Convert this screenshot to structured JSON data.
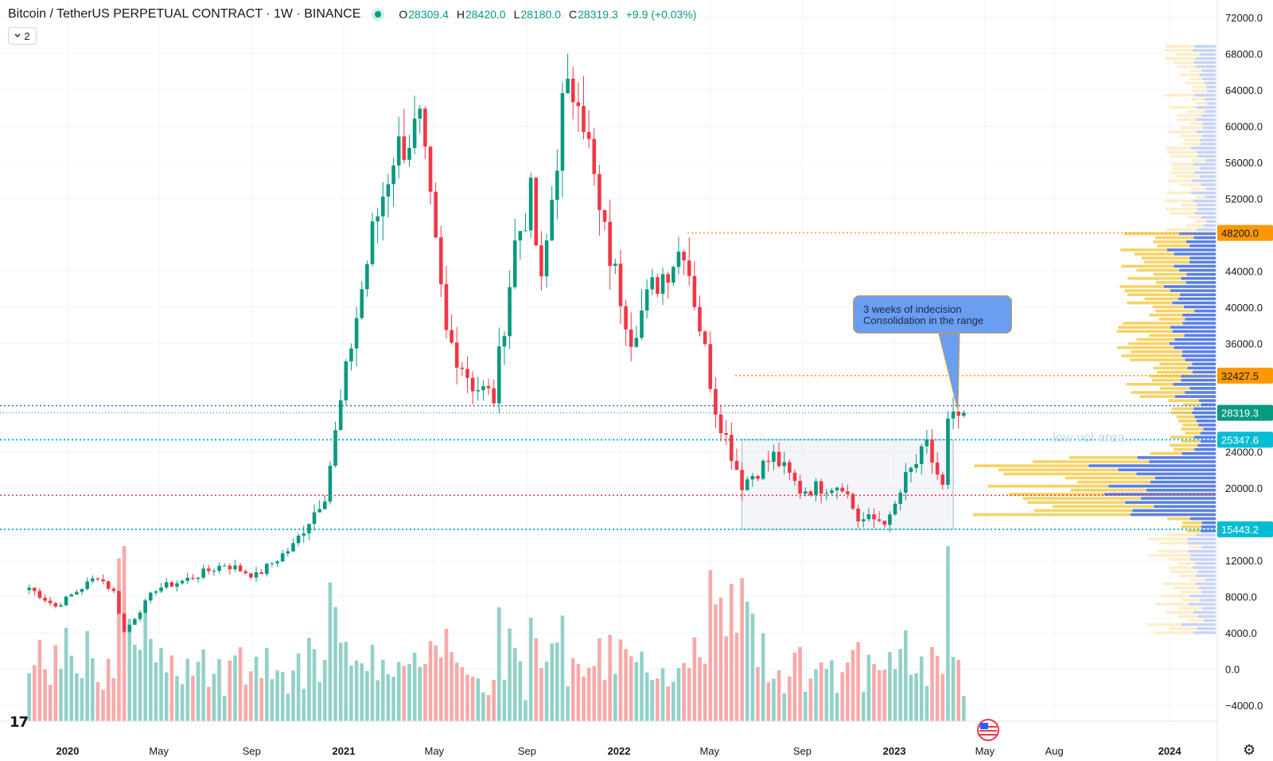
{
  "header": {
    "symbol": "Bitcoin / TetherUS PERPETUAL CONTRACT · 1W · BINANCE",
    "open_label": "O",
    "open": "28309.4",
    "high_label": "H",
    "high": "28420.0",
    "low_label": "L",
    "low": "28180.0",
    "close_label": "C",
    "close": "28319.3",
    "change": "+9.9 (+0.03%)"
  },
  "indicator_badge": "2",
  "annotations": {
    "callout_line1": "3 weeks of indecision",
    "callout_line2": "Consolidation in the range",
    "low_vol": "low vol area"
  },
  "logo": "17",
  "colors": {
    "up": "#089981",
    "down": "#f23645",
    "up_vol": "#92d1c8",
    "down_vol": "#f7a9a9",
    "orange": "#ff9800",
    "blue": "#2962ff",
    "red": "#f23645",
    "teal": "#00bcd4"
  },
  "chart_data": {
    "type": "candlestick",
    "timeframe": "1W",
    "y_ticks": [
      "72000.0",
      "68000.0",
      "64000.0",
      "60000.0",
      "56000.0",
      "52000.0",
      "44000.0",
      "40000.0",
      "36000.0",
      "24000.0",
      "20000.0",
      "12000.0",
      "8000.0",
      "4000.0",
      "0.0",
      "−4000.0"
    ],
    "x_ticks": [
      "2020",
      "May",
      "Sep",
      "2021",
      "May",
      "Sep",
      "2022",
      "May",
      "Sep",
      "2023",
      "May",
      "Aug",
      "2024"
    ],
    "ylim": [
      -6000,
      73500
    ],
    "price_tags": [
      {
        "label": "48200.0",
        "value": 48200,
        "color": "#ff9800"
      },
      {
        "label": "32427.5",
        "value": 32427.5,
        "color": "#ff9800"
      },
      {
        "label": "28319.3",
        "value": 28319.3,
        "color": "#089981"
      },
      {
        "label": "25347.6",
        "value": 25347.6,
        "color": "#00bcd4"
      },
      {
        "label": "15443.2",
        "value": 15443.2,
        "color": "#00bcd4"
      }
    ],
    "levels": [
      {
        "value": 48200,
        "color": "#ff9800"
      },
      {
        "value": 32427.5,
        "color": "#ff9800"
      },
      {
        "value": 29100,
        "color": "#2962ff"
      },
      {
        "value": 25347.6,
        "color": "#00bcd4"
      },
      {
        "value": 19200,
        "color": "#f23645"
      },
      {
        "value": 15443.2,
        "color": "#00bcd4"
      }
    ],
    "range_box": {
      "from": "2022-06-13",
      "to": "2023-03-20",
      "low": 15443.2,
      "high": 25347.6
    },
    "anchors": [
      [
        "2019-11-11",
        9000
      ],
      [
        "2019-12-16",
        6900
      ],
      [
        "2020-02-10",
        10300
      ],
      [
        "2020-03-02",
        8500
      ],
      [
        "2020-03-16",
        4100
      ],
      [
        "2020-04-27",
        8900
      ],
      [
        "2020-06-01",
        9700
      ],
      [
        "2020-07-27",
        11600
      ],
      [
        "2020-09-07",
        10300
      ],
      [
        "2020-10-26",
        13600
      ],
      [
        "2020-12-07",
        19300
      ],
      [
        "2021-01-11",
        36000
      ],
      [
        "2021-02-08",
        48000
      ],
      [
        "2021-03-08",
        57000
      ],
      [
        "2021-04-12",
        60000
      ],
      [
        "2021-05-17",
        37000
      ],
      [
        "2021-06-21",
        31500
      ],
      [
        "2021-07-19",
        30000
      ],
      [
        "2021-08-16",
        47000
      ],
      [
        "2021-09-06",
        52000
      ],
      [
        "2021-09-20",
        42000
      ],
      [
        "2021-10-18",
        62000
      ],
      [
        "2021-11-08",
        65000
      ],
      [
        "2021-12-06",
        50000
      ],
      [
        "2022-01-17",
        37000
      ],
      [
        "2022-02-14",
        42000
      ],
      [
        "2022-03-28",
        47000
      ],
      [
        "2022-05-09",
        29000
      ],
      [
        "2022-06-13",
        20500
      ],
      [
        "2022-07-25",
        23500
      ],
      [
        "2022-08-29",
        19800
      ],
      [
        "2022-10-24",
        20500
      ],
      [
        "2022-11-14",
        16500
      ],
      [
        "2022-12-26",
        16500
      ],
      [
        "2023-01-16",
        21000
      ],
      [
        "2023-02-13",
        24500
      ],
      [
        "2023-03-06",
        20000
      ],
      [
        "2023-03-13",
        27000
      ],
      [
        "2023-04-03",
        28319.3
      ]
    ]
  }
}
